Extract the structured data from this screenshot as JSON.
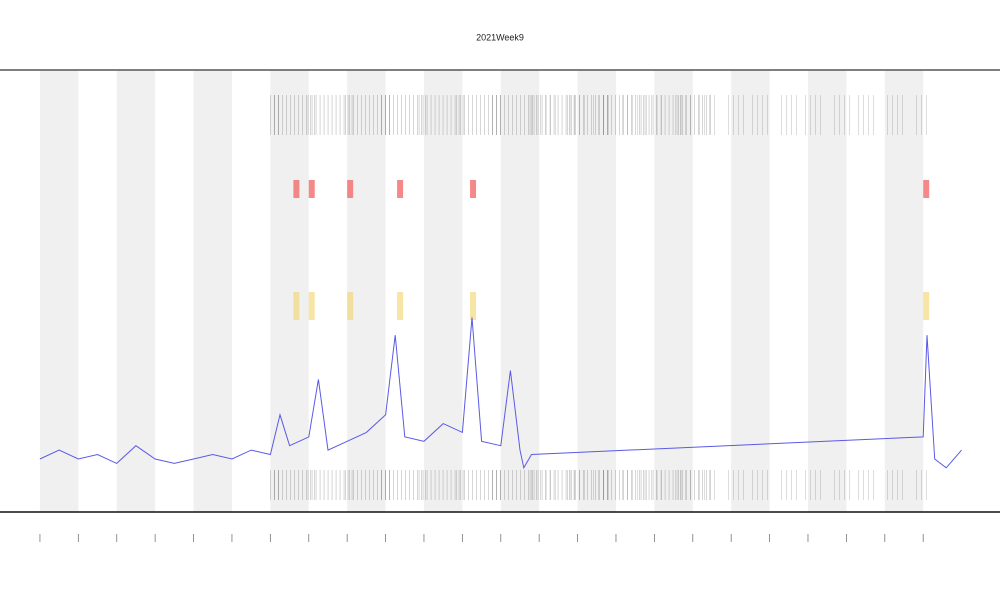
{
  "chart_data": {
    "type": "line",
    "title": "2021Week9",
    "x": [
      0,
      0.5,
      1,
      1.5,
      2,
      2.5,
      3,
      3.5,
      4,
      4.5,
      5,
      5.5,
      6,
      6.25,
      6.5,
      7,
      7.25,
      7.5,
      8,
      8.5,
      9,
      9.25,
      9.5,
      10,
      10.5,
      11,
      11.25,
      11.5,
      12,
      12.25,
      12.5,
      12.6,
      12.8,
      23,
      23.1,
      23.3,
      23.6,
      24
    ],
    "series": [
      {
        "color": "#5a5ae6",
        "values": [
          12,
          14,
          12,
          13,
          11,
          15,
          12,
          11,
          12,
          13,
          12,
          14,
          13,
          22,
          15,
          17,
          30,
          14,
          16,
          18,
          22,
          40,
          17,
          16,
          20,
          18,
          44,
          16,
          15,
          32,
          14,
          10,
          13,
          17,
          40,
          12,
          10,
          14
        ]
      }
    ],
    "xlim": [
      -1.04,
      25
    ],
    "ylim": [
      0,
      100
    ],
    "xticks": [
      0,
      1,
      2,
      3,
      4,
      5,
      6,
      7,
      8,
      9,
      10,
      11,
      12,
      13,
      14,
      15,
      16,
      17,
      18,
      19,
      20,
      21,
      22,
      23
    ]
  }
}
